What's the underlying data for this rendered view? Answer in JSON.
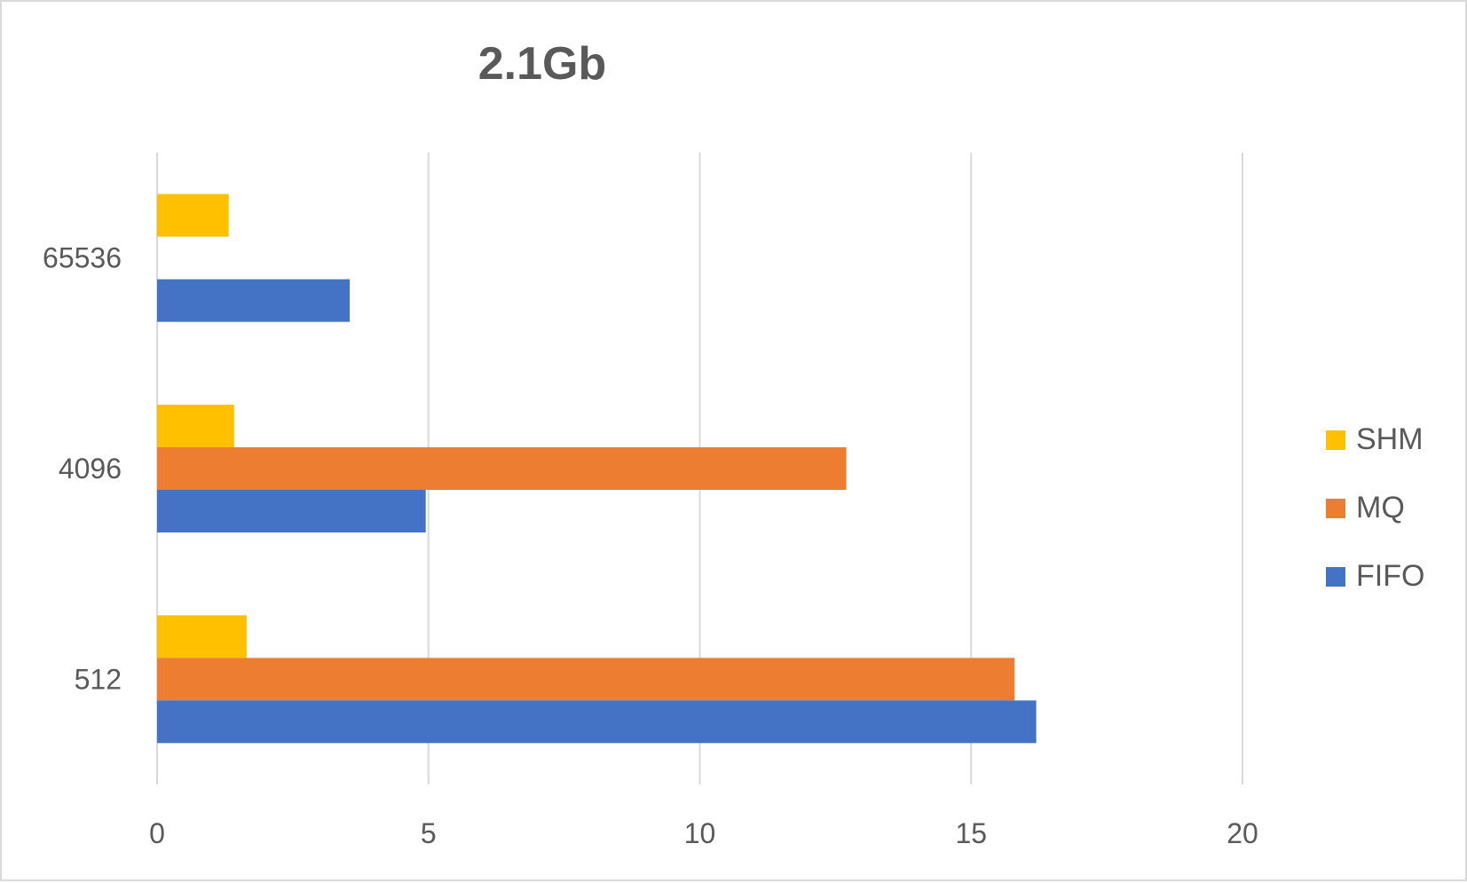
{
  "chart_data": {
    "type": "bar",
    "orientation": "horizontal",
    "title": "2.1Gb",
    "categories": [
      "512",
      "4096",
      "65536"
    ],
    "series": [
      {
        "name": "FIFO",
        "color": "#4472C4",
        "values": [
          16.2,
          4.95,
          3.55
        ]
      },
      {
        "name": "MQ",
        "color": "#ED7D31",
        "values": [
          15.8,
          12.7,
          null
        ]
      },
      {
        "name": "SHM",
        "color": "#FFC000",
        "values": [
          1.65,
          1.42,
          1.32
        ]
      }
    ],
    "xlim": [
      0,
      20
    ],
    "xticks": [
      "0",
      "5",
      "10",
      "15",
      "20"
    ],
    "grid": true,
    "legend_position": "right",
    "legend_order": [
      "SHM",
      "MQ",
      "FIFO"
    ]
  }
}
